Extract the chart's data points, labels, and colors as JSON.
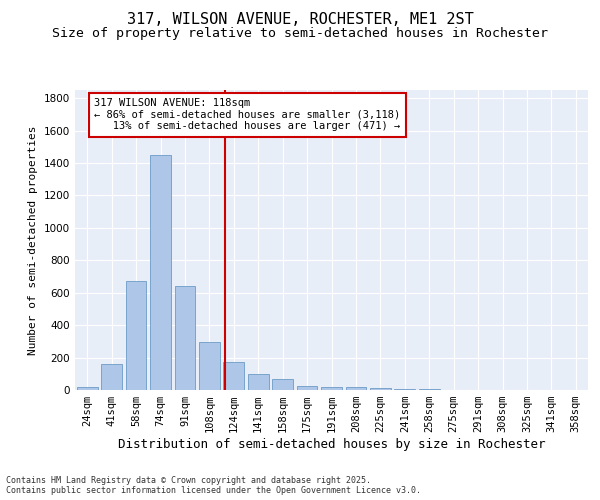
{
  "title1": "317, WILSON AVENUE, ROCHESTER, ME1 2ST",
  "title2": "Size of property relative to semi-detached houses in Rochester",
  "xlabel": "Distribution of semi-detached houses by size in Rochester",
  "ylabel": "Number of semi-detached properties",
  "categories": [
    "24sqm",
    "41sqm",
    "58sqm",
    "74sqm",
    "91sqm",
    "108sqm",
    "124sqm",
    "141sqm",
    "158sqm",
    "175sqm",
    "191sqm",
    "208sqm",
    "225sqm",
    "241sqm",
    "258sqm",
    "275sqm",
    "291sqm",
    "308sqm",
    "325sqm",
    "341sqm",
    "358sqm"
  ],
  "values": [
    20,
    160,
    670,
    1450,
    640,
    295,
    170,
    100,
    65,
    25,
    20,
    18,
    10,
    8,
    5,
    3,
    2,
    2,
    1,
    1,
    1
  ],
  "bar_color": "#aec6e8",
  "bar_edge_color": "#5a8fc0",
  "vline_color": "#cc0000",
  "annotation_text": "317 WILSON AVENUE: 118sqm\n← 86% of semi-detached houses are smaller (3,118)\n   13% of semi-detached houses are larger (471) →",
  "annotation_box_color": "#cc0000",
  "background_color": "#e8eef8",
  "ylim": [
    0,
    1850
  ],
  "yticks": [
    0,
    200,
    400,
    600,
    800,
    1000,
    1200,
    1400,
    1600,
    1800
  ],
  "footer1": "Contains HM Land Registry data © Crown copyright and database right 2025.",
  "footer2": "Contains public sector information licensed under the Open Government Licence v3.0.",
  "title_fontsize": 11,
  "subtitle_fontsize": 9.5,
  "tick_fontsize": 7.5,
  "ylabel_fontsize": 8,
  "xlabel_fontsize": 9,
  "footer_fontsize": 6,
  "annot_fontsize": 7.5
}
